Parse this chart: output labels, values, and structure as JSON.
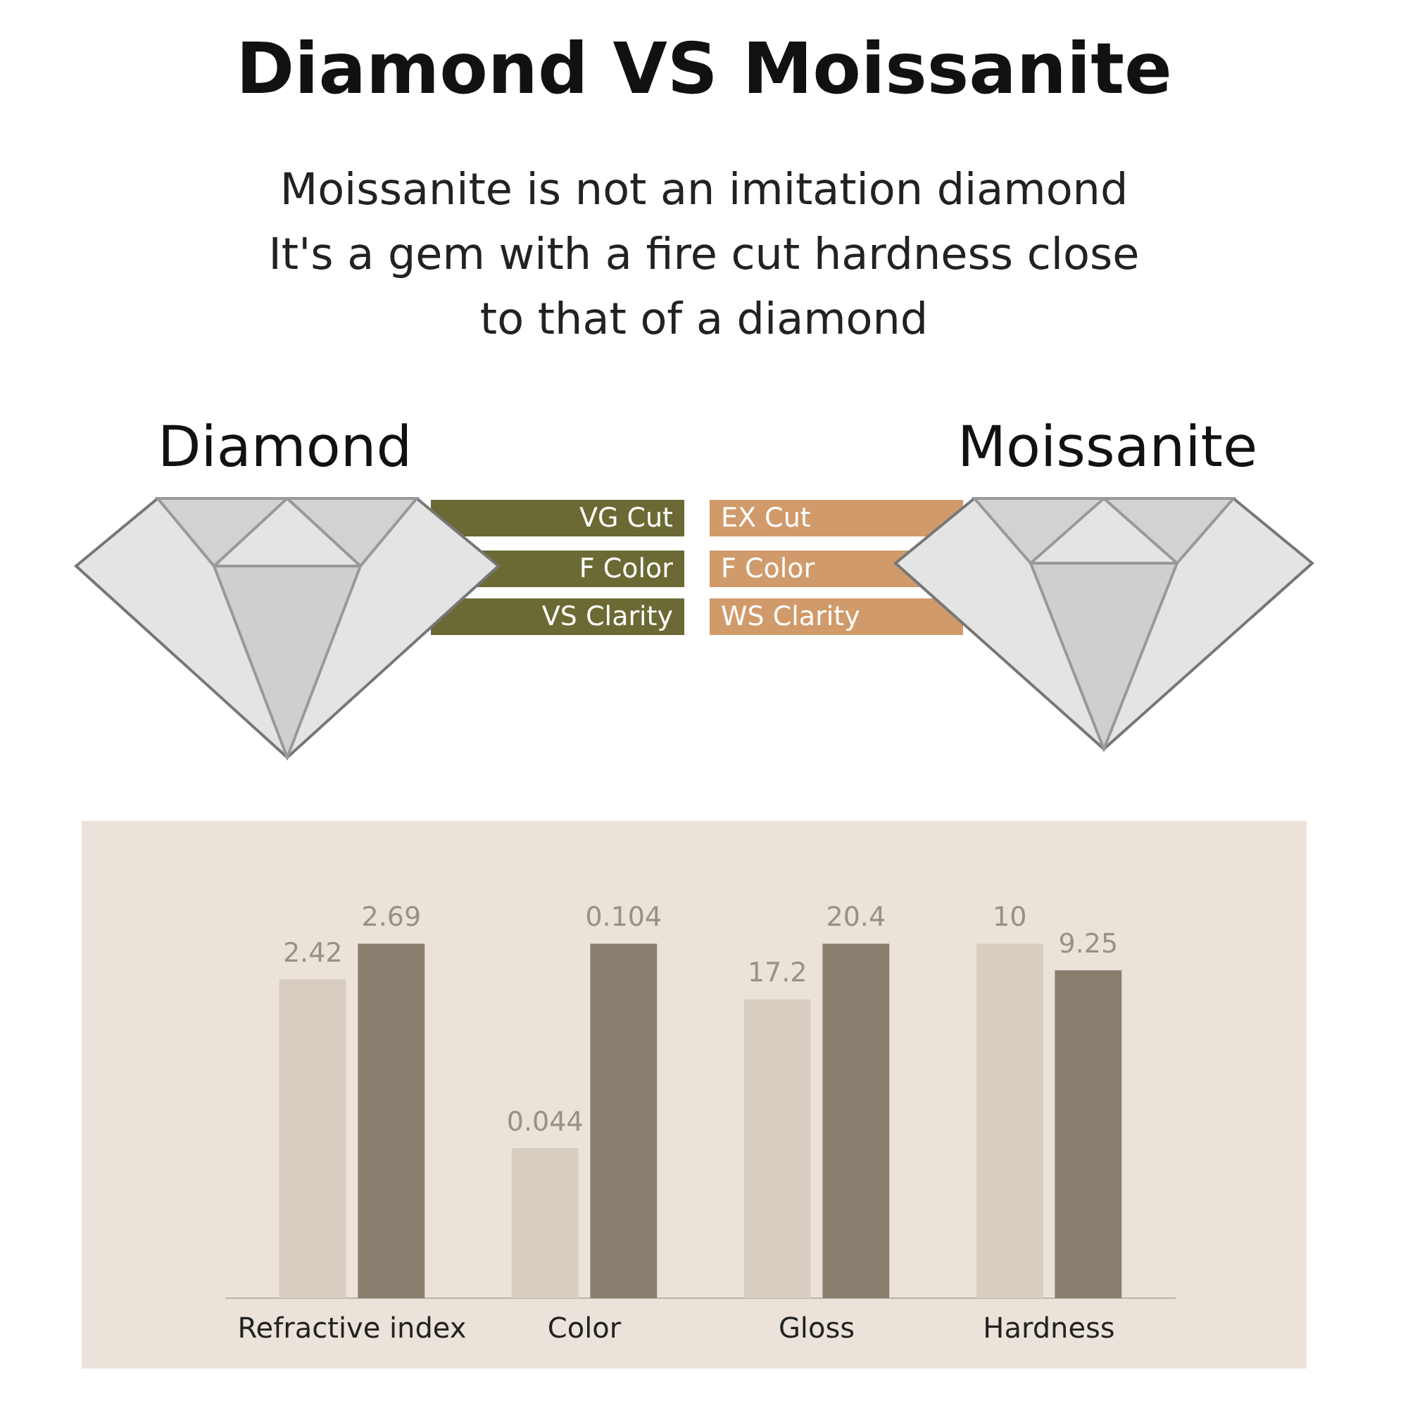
{
  "chart_data": [
    {
      "type": "other",
      "title": "Diamond VS Moissanite",
      "subtitle": "Moissanite is not an imitation diamond\nIt's a gem with a fire cut hardness close\nto that of a diamond",
      "annotations": [
        "Diamond",
        "VG Cut",
        "F Color",
        "VS Clarity",
        "Moissanite",
        "EX Cut",
        "F Color",
        "WS Clarity"
      ]
    },
    {
      "type": "bar",
      "categories": [
        "Refractive index"
      ],
      "series": [
        {
          "color": "#d8cdc1",
          "values": [
            2.42
          ]
        },
        {
          "color": "#8a7e6e",
          "values": [
            2.69
          ]
        }
      ],
      "data_labels": true
    },
    {
      "type": "bar",
      "categories": [
        "Color"
      ],
      "series": [
        {
          "color": "#d8cdc1",
          "values": [
            0.044
          ]
        },
        {
          "color": "#8a7e6e",
          "values": [
            0.104
          ]
        }
      ],
      "data_labels": true
    },
    {
      "type": "bar",
      "categories": [
        "Gloss"
      ],
      "series": [
        {
          "color": "#d8cdc1",
          "values": [
            17.2
          ]
        },
        {
          "color": "#8a7e6e",
          "values": [
            20.4
          ]
        }
      ],
      "data_labels": true
    },
    {
      "type": "bar",
      "categories": [
        "Hardness"
      ],
      "series": [
        {
          "color": "#d8cdc1",
          "values": [
            10
          ]
        },
        {
          "color": "#8a7e6e",
          "values": [
            9.25
          ]
        }
      ],
      "data_labels": true
    }
  ]
}
